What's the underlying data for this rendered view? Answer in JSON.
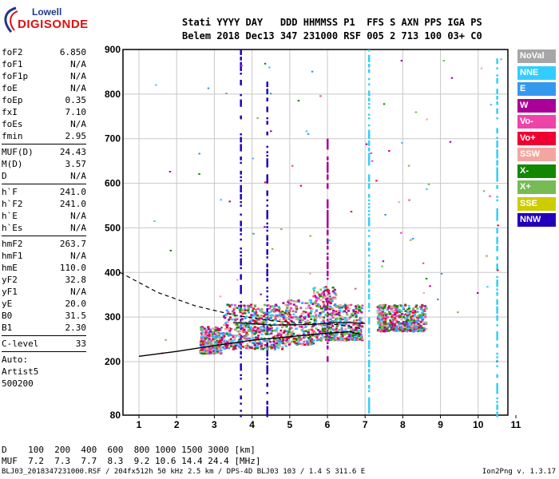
{
  "logo": {
    "line1": "Lowell",
    "line2": "DIGISONDE"
  },
  "header": {
    "labels_line": "Stati YYYY DAY   DDD HHMMSS P1  FFS S AXN PPS IGA PS",
    "values_line": "Belem 2018 Dec13 347 231000 RSF 005 2 713 100 03+ C0"
  },
  "params": [
    {
      "label": "foF2",
      "value": "6.850"
    },
    {
      "label": "foF1",
      "value": "N/A"
    },
    {
      "label": "foF1p",
      "value": "N/A"
    },
    {
      "label": "foE",
      "value": "N/A"
    },
    {
      "label": "foEp",
      "value": "0.35"
    },
    {
      "label": "fxI",
      "value": "7.10"
    },
    {
      "label": "foEs",
      "value": "N/A"
    },
    {
      "label": "fmin",
      "value": "2.95"
    },
    {
      "sep": true
    },
    {
      "label": "MUF(D)",
      "value": "24.43"
    },
    {
      "label": "M(D)",
      "value": "3.57"
    },
    {
      "label": "D",
      "value": "N/A"
    },
    {
      "sep": true
    },
    {
      "label": "h`F",
      "value": "241.0"
    },
    {
      "label": "h`F2",
      "value": "241.0"
    },
    {
      "label": "h`E",
      "value": "N/A"
    },
    {
      "label": "h`Es",
      "value": "N/A"
    },
    {
      "sep": true
    },
    {
      "label": "hmF2",
      "value": "263.7"
    },
    {
      "label": "hmF1",
      "value": "N/A"
    },
    {
      "label": "hmE",
      "value": "110.0"
    },
    {
      "label": "yF2",
      "value": "32.8"
    },
    {
      "label": "yF1",
      "value": "N/A"
    },
    {
      "label": "yE",
      "value": "20.0"
    },
    {
      "label": "B0",
      "value": "31.5"
    },
    {
      "label": "B1",
      "value": "2.30"
    },
    {
      "sep": true
    },
    {
      "label": "C-level",
      "value": "33"
    },
    {
      "sep": true
    },
    {
      "text": "Auto:"
    },
    {
      "text": "Artist5"
    },
    {
      "text": "500200"
    }
  ],
  "legend": [
    {
      "label": "NoVal",
      "color": "#a6a6a6"
    },
    {
      "label": "NNE",
      "color": "#33ccff"
    },
    {
      "label": "E",
      "color": "#3399ee"
    },
    {
      "label": "W",
      "color": "#aa0099"
    },
    {
      "label": "Vo-",
      "color": "#ee44aa"
    },
    {
      "label": "Vo+",
      "color": "#ee0033"
    },
    {
      "label": "SSW",
      "color": "#f3a6a0"
    },
    {
      "label": "X-",
      "color": "#118800"
    },
    {
      "label": "X+",
      "color": "#77bb55"
    },
    {
      "label": "SSE",
      "color": "#cccc00"
    },
    {
      "label": "NNW",
      "color": "#2200bb"
    }
  ],
  "footer": {
    "d_line": "D    100  200  400  600  800 1000 1500 3000 [km]",
    "muf_line": "MUF  7.2  7.3  7.7  8.3  9.2 10.6 14.4 24.4 [MHz]",
    "file_line": "BLJ03_2018347231000.RSF / 204fx512h 50 kHz 2.5 km / DPS-4D BLJ03 103 / 1.4 S 311.6 E",
    "version": "Ion2Png v. 1.3.17"
  },
  "chart_data": {
    "type": "scatter",
    "xlim": [
      0.5,
      11
    ],
    "ylim": [
      80,
      900
    ],
    "x_ticks": [
      1,
      2,
      3,
      4,
      5,
      6,
      7,
      8,
      9,
      10,
      11
    ],
    "y_ticks": [
      80,
      200,
      300,
      400,
      500,
      600,
      700,
      800,
      900
    ],
    "grid": true,
    "vertical_traces": [
      {
        "x": 3.7,
        "y_from": 80,
        "y_to": 900,
        "color": "#2200bb"
      },
      {
        "x": 4.4,
        "y_from": 80,
        "y_to": 835,
        "color": "#2200bb"
      },
      {
        "x": 6.0,
        "y_from": 200,
        "y_to": 700,
        "color": "#aa0099"
      },
      {
        "x": 7.1,
        "y_from": 80,
        "y_to": 900,
        "color": "#33ccff"
      },
      {
        "x": 10.5,
        "y_from": 80,
        "y_to": 880,
        "color": "#33ccff"
      }
    ],
    "echo_clusters": [
      {
        "x_from": 2.6,
        "x_to": 3.2,
        "y_from": 220,
        "y_to": 280
      },
      {
        "x_from": 3.2,
        "x_to": 4.0,
        "y_from": 230,
        "y_to": 330
      },
      {
        "x_from": 4.0,
        "x_to": 4.8,
        "y_from": 230,
        "y_to": 330
      },
      {
        "x_from": 4.8,
        "x_to": 5.6,
        "y_from": 240,
        "y_to": 340
      },
      {
        "x_from": 5.6,
        "x_to": 6.2,
        "y_from": 250,
        "y_to": 370
      },
      {
        "x_from": 6.2,
        "x_to": 6.9,
        "y_from": 250,
        "y_to": 330
      },
      {
        "x_from": 7.3,
        "x_to": 7.9,
        "y_from": 270,
        "y_to": 330
      },
      {
        "x_from": 7.9,
        "x_to": 8.6,
        "y_from": 270,
        "y_to": 330
      }
    ],
    "o_trace": {
      "x": [
        1.0,
        2.0,
        3.0,
        4.0,
        5.0,
        6.0,
        6.6,
        6.85
      ],
      "y": [
        212,
        223,
        236,
        248,
        256,
        264,
        267,
        262
      ]
    },
    "x_trace": {
      "x": [
        3.5,
        4.5,
        5.5,
        6.3,
        7.0
      ],
      "y": [
        288,
        282,
        283,
        288,
        286
      ]
    },
    "profile": {
      "x": [
        0.5,
        1.5,
        2.5,
        3.5,
        4.5,
        5.5,
        6.3,
        6.85
      ],
      "y": [
        400,
        355,
        325,
        305,
        292,
        286,
        283,
        275
      ]
    }
  }
}
